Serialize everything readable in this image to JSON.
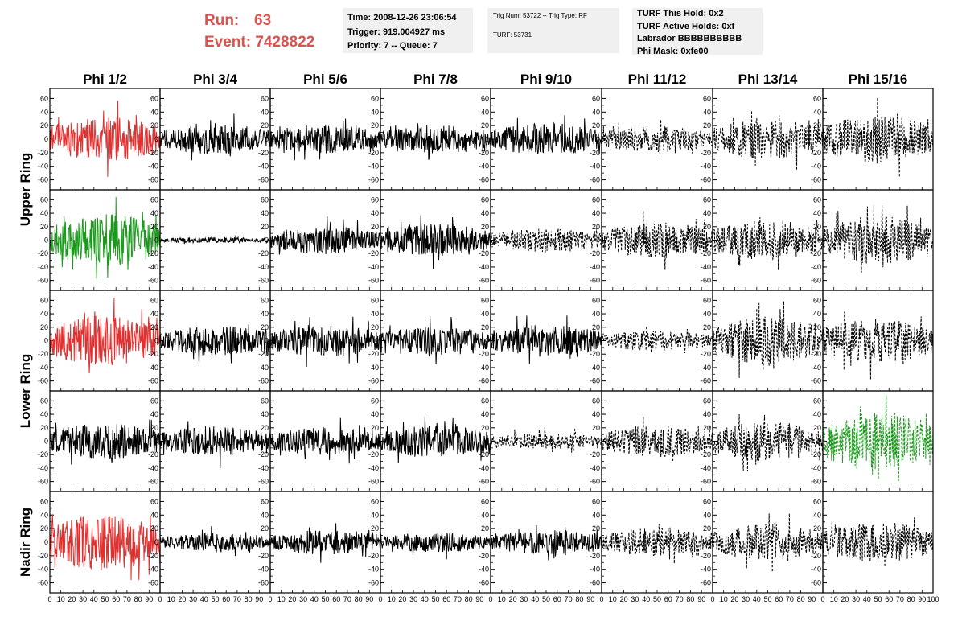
{
  "header": {
    "run_label": "Run:",
    "run_value": "63",
    "event_label": "Event:",
    "event_value": "7428822"
  },
  "info_time": {
    "time": "Time: 2008-12-26 23:06:54",
    "trigger": "Trigger: 919.004927 ms",
    "priority": "Priority: 7 -- Queue: 7"
  },
  "info_trig": {
    "trig": "Trig Num: 53722 -- Trig Type: RF",
    "turf": "TURF: 53731"
  },
  "info_turf": {
    "this_hold": "TURF This Hold: 0x2",
    "active_holds": "TURF Active Holds: 0xf",
    "labrador": "Labrador BBBBBBBBBB",
    "phi_mask": "Phi Mask: 0xfe00"
  },
  "colors": {
    "red": "#e03030",
    "green": "#1a9a1a",
    "black": "#000000",
    "header_red": "#d9534f",
    "info_bg": "#f0f0f0"
  },
  "chart_data": {
    "type": "line",
    "columns": [
      "Phi 1/2",
      "Phi 3/4",
      "Phi 5/6",
      "Phi 7/8",
      "Phi 9/10",
      "Phi 11/12",
      "Phi 13/14",
      "Phi 15/16"
    ],
    "row_groups": [
      {
        "label": "Upper Ring",
        "rows": [
          0,
          1
        ]
      },
      {
        "label": "Lower Ring",
        "rows": [
          2,
          3
        ]
      },
      {
        "label": "Nadir Ring",
        "rows": [
          4
        ]
      }
    ],
    "xlim": [
      0,
      100
    ],
    "ylim": [
      -70,
      70
    ],
    "y_ticks": [
      60,
      40,
      20,
      0,
      -20,
      -40,
      -60
    ],
    "x_tick_labels": [
      "0",
      "10",
      "20",
      "30",
      "40",
      "50",
      "60",
      "70",
      "80",
      "90",
      "100"
    ],
    "traces": [
      [
        {
          "color": "red",
          "style": "solid",
          "amp": 22,
          "seed": 11
        },
        {
          "color": "black",
          "style": "solid",
          "amp": 15,
          "seed": 12
        },
        {
          "color": "black",
          "style": "solid",
          "amp": 14,
          "seed": 13
        },
        {
          "color": "black",
          "style": "solid",
          "amp": 14,
          "seed": 14
        },
        {
          "color": "black",
          "style": "solid",
          "amp": 16,
          "seed": 15
        },
        {
          "color": "black",
          "style": "dashed",
          "amp": 13,
          "seed": 16
        },
        {
          "color": "black",
          "style": "dashed",
          "amp": 20,
          "seed": 17
        },
        {
          "color": "black",
          "style": "dashed",
          "amp": 24,
          "seed": 18
        }
      ],
      [
        {
          "color": "green",
          "style": "solid",
          "amp": 26,
          "seed": 21
        },
        {
          "color": "black",
          "style": "solid",
          "amp": 3,
          "seed": 22
        },
        {
          "color": "black",
          "style": "solid",
          "amp": 14,
          "seed": 23
        },
        {
          "color": "black",
          "style": "solid",
          "amp": 16,
          "seed": 24
        },
        {
          "color": "black",
          "style": "dashed",
          "amp": 12,
          "seed": 25
        },
        {
          "color": "black",
          "style": "dashed",
          "amp": 18,
          "seed": 26
        },
        {
          "color": "black",
          "style": "dashed",
          "amp": 20,
          "seed": 27
        },
        {
          "color": "black",
          "style": "dashed",
          "amp": 24,
          "seed": 28
        }
      ],
      [
        {
          "color": "red",
          "style": "solid",
          "amp": 25,
          "seed": 31
        },
        {
          "color": "black",
          "style": "solid",
          "amp": 15,
          "seed": 32
        },
        {
          "color": "black",
          "style": "solid",
          "amp": 16,
          "seed": 33
        },
        {
          "color": "black",
          "style": "solid",
          "amp": 14,
          "seed": 34
        },
        {
          "color": "black",
          "style": "solid",
          "amp": 16,
          "seed": 35
        },
        {
          "color": "black",
          "style": "dashed",
          "amp": 10,
          "seed": 36
        },
        {
          "color": "black",
          "style": "dashed",
          "amp": 24,
          "seed": 37
        },
        {
          "color": "black",
          "style": "dashed",
          "amp": 22,
          "seed": 38
        }
      ],
      [
        {
          "color": "black",
          "style": "solid",
          "amp": 18,
          "seed": 41
        },
        {
          "color": "black",
          "style": "solid",
          "amp": 15,
          "seed": 42
        },
        {
          "color": "black",
          "style": "solid",
          "amp": 14,
          "seed": 43
        },
        {
          "color": "black",
          "style": "solid",
          "amp": 16,
          "seed": 44
        },
        {
          "color": "black",
          "style": "dashed",
          "amp": 8,
          "seed": 45
        },
        {
          "color": "black",
          "style": "dashed",
          "amp": 16,
          "seed": 46
        },
        {
          "color": "black",
          "style": "dashed",
          "amp": 20,
          "seed": 47
        },
        {
          "color": "green",
          "style": "dashed",
          "amp": 30,
          "seed": 48
        }
      ],
      [
        {
          "color": "red",
          "style": "solid",
          "amp": 28,
          "seed": 51
        },
        {
          "color": "black",
          "style": "solid",
          "amp": 9,
          "seed": 52
        },
        {
          "color": "black",
          "style": "solid",
          "amp": 12,
          "seed": 53
        },
        {
          "color": "black",
          "style": "solid",
          "amp": 10,
          "seed": 54
        },
        {
          "color": "black",
          "style": "solid",
          "amp": 12,
          "seed": 55
        },
        {
          "color": "black",
          "style": "dashed",
          "amp": 14,
          "seed": 56
        },
        {
          "color": "black",
          "style": "dashed",
          "amp": 18,
          "seed": 57
        },
        {
          "color": "black",
          "style": "dashed",
          "amp": 20,
          "seed": 58
        }
      ]
    ]
  }
}
